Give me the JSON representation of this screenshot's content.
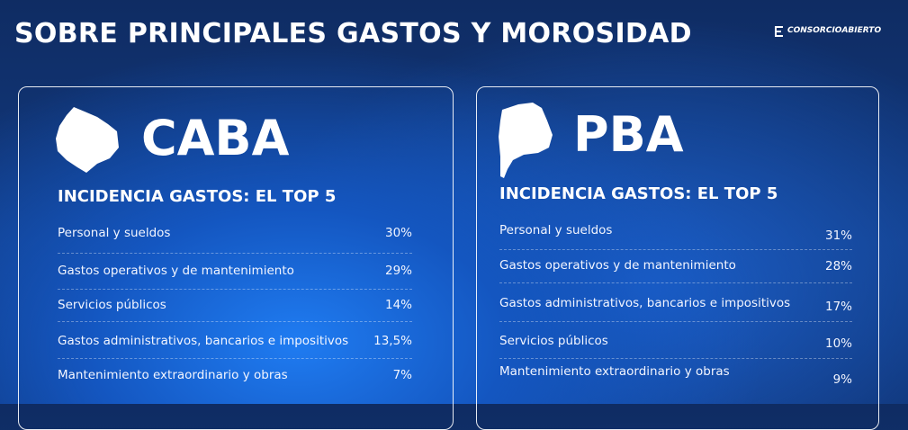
{
  "header": {
    "title": "SOBRE PRINCIPALES GASTOS Y MOROSIDAD",
    "logo": "CONSORCIOABIERTO"
  },
  "panels": [
    {
      "region": "CABA",
      "subtitle": "INCIDENCIA GASTOS: EL TOP 5",
      "rows": [
        {
          "label": "Personal y sueldos",
          "value": "30%"
        },
        {
          "label": "Gastos operativos y de mantenimiento",
          "value": "29%"
        },
        {
          "label": "Servicios públicos",
          "value": "14%"
        },
        {
          "label": "Gastos administrativos, bancarios e impositivos",
          "value": "13,5%"
        },
        {
          "label": "Mantenimiento extraordinario y obras",
          "value": "7%"
        }
      ]
    },
    {
      "region": "PBA",
      "subtitle": "INCIDENCIA GASTOS: EL TOP 5",
      "rows": [
        {
          "label": "Personal y sueldos",
          "value": "31%"
        },
        {
          "label": "Gastos operativos y de mantenimiento",
          "value": "28%"
        },
        {
          "label": "Gastos administrativos, bancarios e impositivos",
          "value": "17%"
        },
        {
          "label": "Servicios públicos",
          "value": "10%"
        },
        {
          "label": "Mantenimiento extraordinario y obras",
          "value": "9%"
        }
      ]
    }
  ]
}
